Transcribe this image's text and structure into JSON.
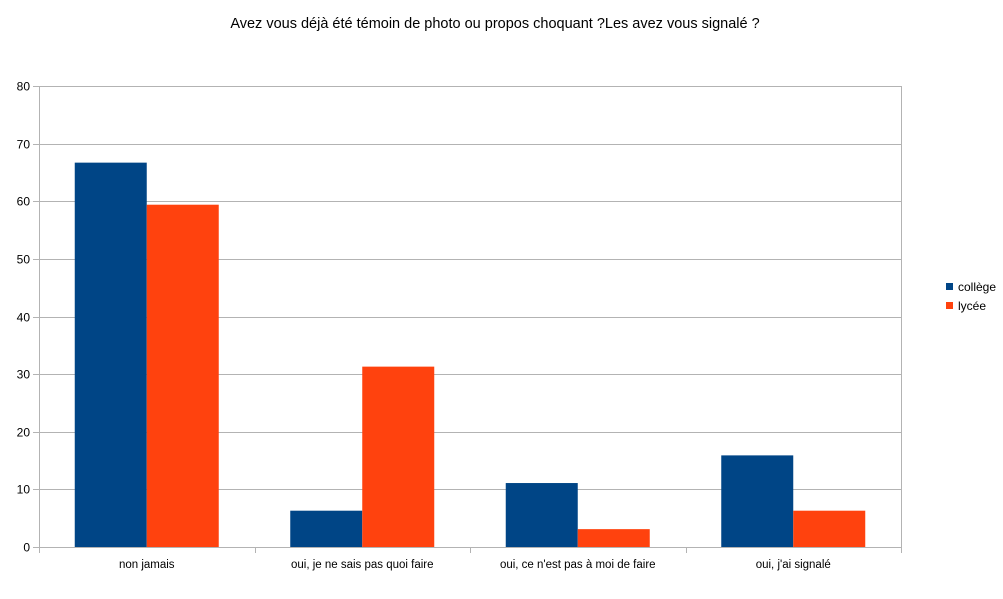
{
  "chart_data": {
    "type": "bar",
    "title": "Avez vous déjà été témoin de photo ou propos choquant ?Les avez vous signalé ?",
    "xlabel": "",
    "ylabel": "",
    "categories": [
      "non jamais",
      "oui, je ne sais pas quoi faire",
      "oui, ce n'est pas à moi de faire",
      "oui, j'ai signalé"
    ],
    "series": [
      {
        "name": "collège",
        "color": "#004586",
        "values": [
          66.7,
          6.3,
          11.1,
          15.9
        ]
      },
      {
        "name": "lycée",
        "color": "#ff420e",
        "values": [
          59.4,
          31.3,
          3.1,
          6.3
        ]
      }
    ],
    "ylim": [
      0,
      80
    ],
    "yticks": [
      0,
      10,
      20,
      30,
      40,
      50,
      60,
      70,
      80
    ],
    "grid": true,
    "legend_position": "right"
  }
}
